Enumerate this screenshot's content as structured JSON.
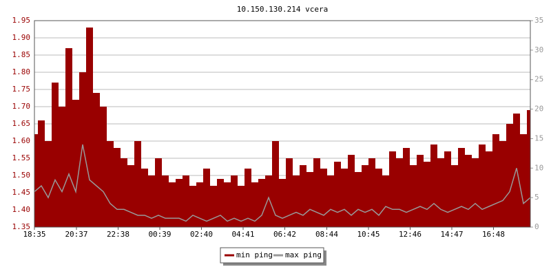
{
  "chart_data": {
    "type": "line",
    "title": "10.150.130.214 vcera",
    "x": [
      0,
      20,
      40,
      60,
      80,
      100,
      120,
      140,
      160,
      180,
      200,
      220,
      240,
      260,
      280,
      300,
      320,
      340,
      360,
      380,
      400,
      420,
      440,
      460,
      480,
      500,
      520,
      540,
      560,
      580,
      600,
      620,
      640,
      660,
      680,
      700,
      720,
      740,
      760,
      780,
      800,
      820,
      840,
      860,
      880,
      900,
      920,
      940,
      960,
      980,
      1000,
      1020,
      1040,
      1060,
      1080,
      1100,
      1120,
      1140,
      1160,
      1180,
      1200,
      1220,
      1240,
      1260,
      1280,
      1300,
      1320,
      1340,
      1360,
      1380,
      1400,
      1420,
      1440
    ],
    "xlim": [
      0,
      1440
    ],
    "xticks": [
      {
        "value": 0,
        "label": "18:35"
      },
      {
        "value": 122,
        "label": "20:37"
      },
      {
        "value": 243,
        "label": "22:38"
      },
      {
        "value": 364,
        "label": "00:39"
      },
      {
        "value": 485,
        "label": "02:40"
      },
      {
        "value": 606,
        "label": "04:41"
      },
      {
        "value": 727,
        "label": "06:42"
      },
      {
        "value": 849,
        "label": "08:44"
      },
      {
        "value": 970,
        "label": "10:45"
      },
      {
        "value": 1091,
        "label": "12:46"
      },
      {
        "value": 1212,
        "label": "14:47"
      },
      {
        "value": 1333,
        "label": "16:48"
      }
    ],
    "ylim": [
      1.35,
      1.95
    ],
    "yticks": [
      1.35,
      {
        "value": 1.4,
        "label": "1.40"
      },
      1.45,
      {
        "value": 1.5,
        "label": "1.50"
      },
      1.55,
      {
        "value": 1.6,
        "label": "1.60"
      },
      1.65,
      {
        "value": 1.7,
        "label": "1.70"
      },
      1.75,
      {
        "value": 1.8,
        "label": "1.80"
      },
      1.85,
      {
        "value": 1.9,
        "label": "1.90"
      },
      1.95
    ],
    "y2lim": [
      0,
      35
    ],
    "y2ticks": [
      0,
      5,
      10,
      15,
      20,
      25,
      30,
      35
    ],
    "grid": true,
    "legend": "bottom",
    "series": [
      {
        "name": "min ping",
        "color": "#990000",
        "axis": "y",
        "values": [
          1.62,
          1.66,
          1.6,
          1.77,
          1.7,
          1.87,
          1.72,
          1.8,
          1.93,
          1.74,
          1.7,
          1.6,
          1.58,
          1.55,
          1.53,
          1.6,
          1.52,
          1.5,
          1.55,
          1.5,
          1.48,
          1.49,
          1.5,
          1.47,
          1.48,
          1.52,
          1.47,
          1.49,
          1.48,
          1.5,
          1.47,
          1.52,
          1.48,
          1.49,
          1.5,
          1.6,
          1.49,
          1.55,
          1.5,
          1.53,
          1.51,
          1.55,
          1.52,
          1.5,
          1.54,
          1.52,
          1.56,
          1.51,
          1.53,
          1.55,
          1.52,
          1.5,
          1.57,
          1.55,
          1.58,
          1.53,
          1.56,
          1.54,
          1.59,
          1.55,
          1.57,
          1.53,
          1.58,
          1.56,
          1.55,
          1.59,
          1.57,
          1.62,
          1.6,
          1.65,
          1.68,
          1.62,
          1.69
        ]
      },
      {
        "name": "max ping",
        "color": "#999999",
        "axis": "y2",
        "values": [
          6,
          7,
          5,
          8,
          6,
          9,
          6,
          14,
          8,
          7,
          6,
          4,
          3,
          3,
          2.5,
          2,
          2,
          1.5,
          2,
          1.5,
          1.5,
          1.5,
          1,
          2,
          1.5,
          1,
          1.5,
          2,
          1,
          1.5,
          1,
          1.5,
          1,
          2,
          5,
          2,
          1.5,
          2,
          2.5,
          2,
          3,
          2.5,
          2,
          3,
          2.5,
          3,
          2,
          3,
          2.5,
          3,
          2,
          3.5,
          3,
          3,
          2.5,
          3,
          3.5,
          3,
          4,
          3,
          2.5,
          3,
          3.5,
          3,
          4,
          3,
          3.5,
          4,
          4.5,
          6,
          10,
          4,
          5
        ]
      }
    ]
  }
}
